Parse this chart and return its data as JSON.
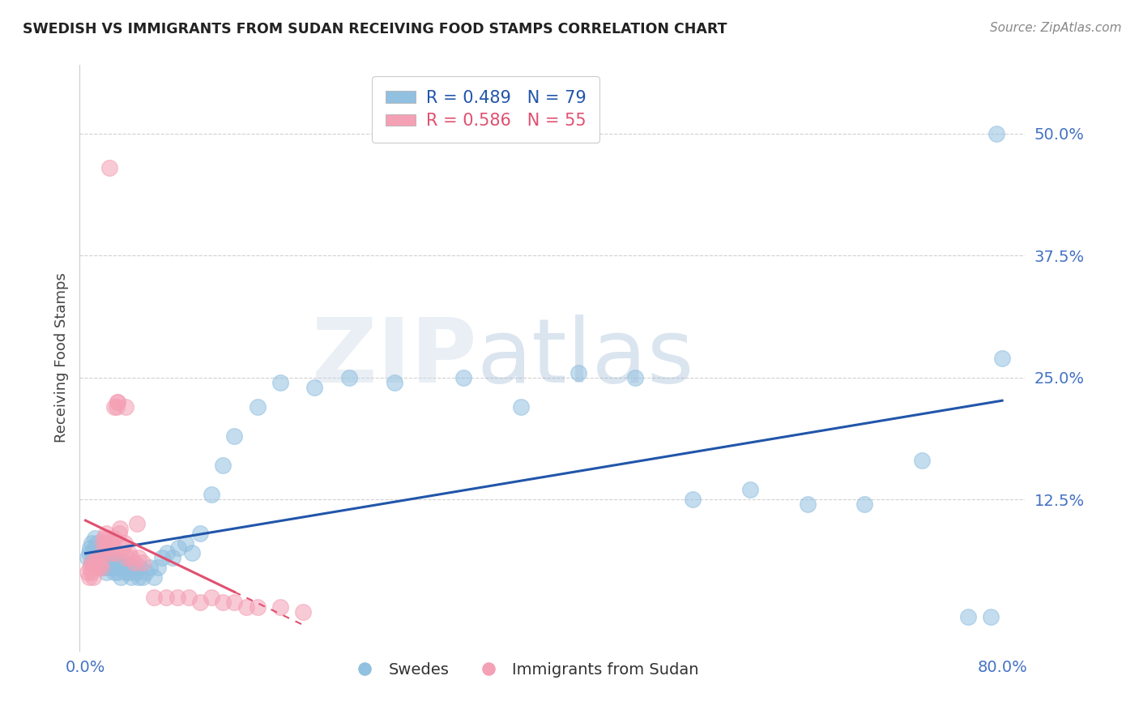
{
  "title": "SWEDISH VS IMMIGRANTS FROM SUDAN RECEIVING FOOD STAMPS CORRELATION CHART",
  "source": "Source: ZipAtlas.com",
  "ylabel": "Receiving Food Stamps",
  "xlim": [
    -0.005,
    0.82
  ],
  "ylim": [
    -0.03,
    0.57
  ],
  "xtick_positions": [
    0.0,
    0.8
  ],
  "xtick_labels": [
    "0.0%",
    "80.0%"
  ],
  "ytick_positions": [
    0.125,
    0.25,
    0.375,
    0.5
  ],
  "ytick_labels": [
    "12.5%",
    "25.0%",
    "37.5%",
    "50.0%"
  ],
  "blue_R": 0.489,
  "blue_N": 79,
  "pink_R": 0.586,
  "pink_N": 55,
  "blue_color": "#92C0E0",
  "pink_color": "#F4A0B5",
  "blue_line_color": "#2255AA",
  "pink_line_color": "#E05070",
  "watermark": "ZIPatlas",
  "legend_label_blue": "Swedes",
  "legend_label_pink": "Immigrants from Sudan",
  "blue_x": [
    0.002,
    0.003,
    0.004,
    0.005,
    0.005,
    0.006,
    0.007,
    0.008,
    0.008,
    0.009,
    0.01,
    0.01,
    0.011,
    0.012,
    0.013,
    0.013,
    0.014,
    0.015,
    0.015,
    0.016,
    0.017,
    0.018,
    0.018,
    0.019,
    0.02,
    0.021,
    0.022,
    0.023,
    0.024,
    0.025,
    0.026,
    0.027,
    0.028,
    0.029,
    0.03,
    0.031,
    0.032,
    0.034,
    0.035,
    0.036,
    0.038,
    0.04,
    0.042,
    0.044,
    0.046,
    0.048,
    0.05,
    0.053,
    0.056,
    0.06,
    0.063,
    0.067,
    0.071,
    0.076,
    0.081,
    0.087,
    0.093,
    0.1,
    0.11,
    0.12,
    0.13,
    0.15,
    0.17,
    0.2,
    0.23,
    0.27,
    0.33,
    0.38,
    0.43,
    0.48,
    0.53,
    0.58,
    0.63,
    0.68,
    0.73,
    0.77,
    0.79,
    0.795,
    0.8
  ],
  "blue_y": [
    0.065,
    0.07,
    0.075,
    0.06,
    0.08,
    0.07,
    0.065,
    0.075,
    0.085,
    0.06,
    0.07,
    0.08,
    0.065,
    0.075,
    0.06,
    0.07,
    0.055,
    0.065,
    0.075,
    0.055,
    0.06,
    0.07,
    0.05,
    0.065,
    0.055,
    0.07,
    0.06,
    0.055,
    0.065,
    0.05,
    0.06,
    0.055,
    0.05,
    0.06,
    0.055,
    0.045,
    0.055,
    0.06,
    0.05,
    0.055,
    0.05,
    0.045,
    0.055,
    0.05,
    0.045,
    0.055,
    0.045,
    0.05,
    0.055,
    0.045,
    0.055,
    0.065,
    0.07,
    0.065,
    0.075,
    0.08,
    0.07,
    0.09,
    0.13,
    0.16,
    0.19,
    0.22,
    0.245,
    0.24,
    0.25,
    0.245,
    0.25,
    0.22,
    0.255,
    0.25,
    0.125,
    0.135,
    0.12,
    0.12,
    0.165,
    0.005,
    0.005,
    0.5,
    0.27
  ],
  "pink_x": [
    0.002,
    0.003,
    0.004,
    0.005,
    0.005,
    0.006,
    0.007,
    0.008,
    0.009,
    0.01,
    0.011,
    0.012,
    0.013,
    0.014,
    0.015,
    0.016,
    0.017,
    0.018,
    0.019,
    0.02,
    0.021,
    0.022,
    0.023,
    0.024,
    0.025,
    0.026,
    0.027,
    0.028,
    0.029,
    0.03,
    0.032,
    0.034,
    0.036,
    0.038,
    0.04,
    0.043,
    0.046,
    0.05,
    0.06,
    0.07,
    0.08,
    0.09,
    0.1,
    0.11,
    0.12,
    0.13,
    0.14,
    0.15,
    0.17,
    0.19,
    0.021,
    0.025,
    0.028,
    0.035,
    0.045
  ],
  "pink_y": [
    0.05,
    0.045,
    0.055,
    0.05,
    0.06,
    0.055,
    0.045,
    0.055,
    0.06,
    0.065,
    0.055,
    0.065,
    0.06,
    0.055,
    0.08,
    0.085,
    0.075,
    0.09,
    0.08,
    0.085,
    0.075,
    0.08,
    0.07,
    0.075,
    0.085,
    0.07,
    0.22,
    0.225,
    0.09,
    0.095,
    0.075,
    0.08,
    0.065,
    0.07,
    0.065,
    0.06,
    0.065,
    0.06,
    0.025,
    0.025,
    0.025,
    0.025,
    0.02,
    0.025,
    0.02,
    0.02,
    0.015,
    0.015,
    0.015,
    0.01,
    0.465,
    0.22,
    0.225,
    0.22,
    0.1
  ],
  "pink_trend_x0": 0.0,
  "pink_trend_x1": 0.13,
  "pink_trend_dashed_x1": 0.19,
  "blue_trend_x0": 0.0,
  "blue_trend_x1": 0.8
}
